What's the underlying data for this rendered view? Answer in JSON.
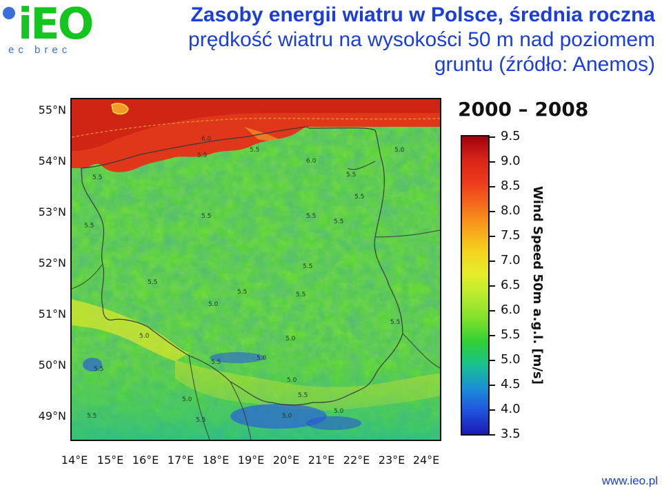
{
  "logo": {
    "letters": "iEO",
    "subtitle": "ec brec"
  },
  "title": {
    "line1": "Zasoby energii wiatru w Polsce, średnia roczna",
    "line2": "prędkość wiatru na wysokości 50 m nad poziomem",
    "line3": "gruntu (źródło: Anemos)"
  },
  "period": "2000 – 2008",
  "axes": {
    "lat_labels": [
      "55°N",
      "54°N",
      "53°N",
      "52°N",
      "51°N",
      "50°N",
      "49°N"
    ],
    "lon_labels": [
      "14°E",
      "15°E",
      "16°E",
      "17°E",
      "18°E",
      "19°E",
      "20°E",
      "21°E",
      "22°E",
      "23°E",
      "24°E"
    ]
  },
  "colorbar": {
    "title": "Wind Speed 50m a.g.l. [m/s]",
    "ticks": [
      "9.5",
      "9.0",
      "8.5",
      "8.0",
      "7.5",
      "7.0",
      "6.5",
      "6.0",
      "5.5",
      "5.0",
      "4.5",
      "4.0",
      "3.5"
    ],
    "colors": [
      "#a30010",
      "#d92418",
      "#ee3a1c",
      "#f46c1a",
      "#f7a21c",
      "#f5d21c",
      "#e6ee2a",
      "#b6ea2e",
      "#7ddf2c",
      "#2fcf36",
      "#18c091",
      "#1c8fd6",
      "#2050e0",
      "#1a1ab4"
    ]
  },
  "contour_labels": [
    {
      "text": "6.0"
    },
    {
      "text": "5.5"
    },
    {
      "text": "5.5"
    },
    {
      "text": "6.0"
    },
    {
      "text": "5.0"
    },
    {
      "text": "5.5"
    },
    {
      "text": "5.5"
    },
    {
      "text": "5.5"
    },
    {
      "text": "5.5"
    },
    {
      "text": "5.5"
    },
    {
      "text": "5.5"
    },
    {
      "text": "5.5"
    },
    {
      "text": "5.5"
    },
    {
      "text": "5.5"
    },
    {
      "text": "5.5"
    },
    {
      "text": "5.5"
    },
    {
      "text": "5.0"
    },
    {
      "text": "5.0"
    },
    {
      "text": "5.5"
    },
    {
      "text": "5.0"
    },
    {
      "text": "5.5"
    },
    {
      "text": "5.0"
    },
    {
      "text": "5.0"
    },
    {
      "text": "5.5"
    },
    {
      "text": "5.0"
    },
    {
      "text": "5.5"
    },
    {
      "text": "5.5"
    },
    {
      "text": "5.0"
    },
    {
      "text": "5.0"
    },
    {
      "text": "5.5"
    }
  ],
  "footer": "www.ieo.pl",
  "colors": {
    "title_blue": "#1a3edc",
    "logo_green": "#14c51f",
    "sea_red": "#e0361a"
  }
}
